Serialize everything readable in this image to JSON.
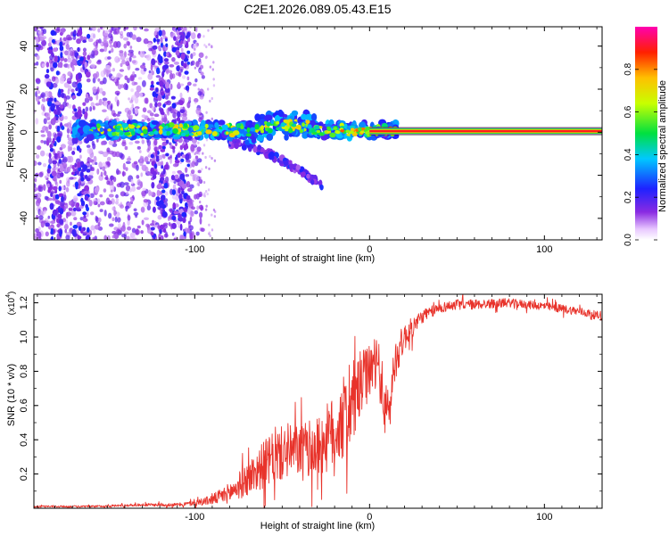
{
  "figure_title": "C2E1.2026.089.05.43.E15",
  "colorbar": {
    "label": "Normalized spectral amplitude",
    "range": [
      0,
      1
    ],
    "ticks": [
      {
        "value": 0.0,
        "label": "0.0"
      },
      {
        "value": 0.2,
        "label": "0.2"
      },
      {
        "value": 0.4,
        "label": "0.4"
      },
      {
        "value": 0.6,
        "label": "0.6"
      },
      {
        "value": 0.8,
        "label": "0.8"
      }
    ],
    "colormap": "rainbow (white-violet-blue-cyan-green-yellow-orange-red-magenta)"
  },
  "chart_data": [
    {
      "type": "heatmap",
      "title": "C2E1.2026.089.05.43.E15",
      "xlabel": "Height of straight line (km)",
      "ylabel": "Frequency (Hz)",
      "xlim": [
        -192,
        133
      ],
      "ylim": [
        -50,
        49
      ],
      "xticks": [
        {
          "value": -100,
          "label": "-100"
        },
        {
          "value": 0,
          "label": "0"
        },
        {
          "value": 100,
          "label": "100"
        }
      ],
      "yticks": [
        {
          "value": -40,
          "label": "-40"
        },
        {
          "value": -20,
          "label": "-20"
        },
        {
          "value": 0,
          "label": "0"
        },
        {
          "value": 20,
          "label": "20"
        },
        {
          "value": 40,
          "label": "40"
        }
      ],
      "features": [
        {
          "name": "noise scatter",
          "x_range": [
            -192,
            -95
          ],
          "y_range": [
            -50,
            49
          ],
          "amplitude": 0.15
        },
        {
          "name": "dense noise columns",
          "x": [
            -180,
            -165,
            -120,
            -108
          ],
          "amplitude": 0.2
        },
        {
          "name": "main carrier band",
          "x_range": [
            -170,
            15
          ],
          "y_center": 1,
          "amplitude_range": [
            0.3,
            0.75
          ]
        },
        {
          "name": "secondary branch",
          "x_range": [
            -80,
            -27
          ],
          "y_from": -5,
          "y_to": -25,
          "amplitude": 0.2
        },
        {
          "name": "steady tone",
          "x_range": [
            0,
            133
          ],
          "y": 0.5,
          "amplitude": 0.9
        }
      ]
    },
    {
      "type": "line",
      "xlabel": "Height of straight line (km)",
      "ylabel": "SNR (10 * v/v)",
      "y_multiplier_label": "(x10",
      "y_multiplier_exponent": "4",
      "y_multiplier_close": ")",
      "xlim": [
        -192,
        133
      ],
      "ylim": [
        0,
        1.25
      ],
      "xticks": [
        {
          "value": -100,
          "label": "-100"
        },
        {
          "value": 0,
          "label": "0"
        },
        {
          "value": 100,
          "label": "100"
        }
      ],
      "yticks": [
        {
          "value": 0.2,
          "label": "0.2"
        },
        {
          "value": 0.4,
          "label": "0.4"
        },
        {
          "value": 0.6,
          "label": "0.6"
        },
        {
          "value": 0.8,
          "label": "0.8"
        },
        {
          "value": 1.0,
          "label": "1.0"
        },
        {
          "value": 1.2,
          "label": "1.2"
        }
      ],
      "series": [
        {
          "name": "SNR",
          "color": "#e8332b",
          "x": [
            -192,
            -160,
            -130,
            -110,
            -100,
            -90,
            -80,
            -70,
            -60,
            -50,
            -40,
            -30,
            -20,
            -15,
            -10,
            -5,
            0,
            5,
            10,
            15,
            20,
            30,
            40,
            50,
            60,
            80,
            100,
            120,
            133
          ],
          "values": [
            0.01,
            0.01,
            0.02,
            0.02,
            0.03,
            0.05,
            0.09,
            0.17,
            0.26,
            0.32,
            0.34,
            0.35,
            0.45,
            0.52,
            0.6,
            0.72,
            0.8,
            0.84,
            0.5,
            0.88,
            1.0,
            1.12,
            1.17,
            1.19,
            1.19,
            1.2,
            1.18,
            1.15,
            1.12
          ],
          "noise_amplitude": [
            0.005,
            0.006,
            0.008,
            0.01,
            0.015,
            0.03,
            0.06,
            0.1,
            0.14,
            0.16,
            0.15,
            0.18,
            0.22,
            0.25,
            0.25,
            0.2,
            0.15,
            0.15,
            0.2,
            0.12,
            0.08,
            0.04,
            0.03,
            0.03,
            0.03,
            0.025,
            0.025,
            0.025,
            0.025
          ]
        }
      ]
    }
  ]
}
